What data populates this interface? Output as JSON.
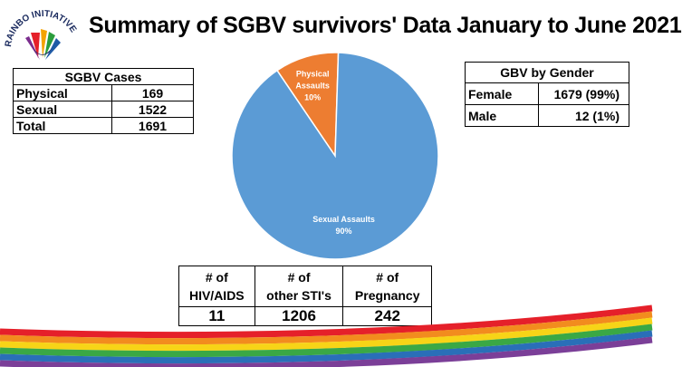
{
  "title": "Summary of SGBV survivors' Data January to June 2021",
  "logo": {
    "text": "RAINBO INITIATIVE"
  },
  "sgbv_cases": {
    "header": "SGBV Cases",
    "rows": [
      {
        "label": "Physical",
        "value": "169"
      },
      {
        "label": "Sexual",
        "value": "1522"
      },
      {
        "label": "Total",
        "value": "1691"
      }
    ]
  },
  "gbv_gender": {
    "header": "GBV by Gender",
    "rows": [
      {
        "label": "Female",
        "value": "1679 (99%)"
      },
      {
        "label": "Male",
        "value": "12 (1%)"
      }
    ]
  },
  "summary_table": {
    "headers": [
      "# of HIV/AIDS",
      "# of other STI's",
      "# of Pregnancy"
    ],
    "values": [
      "11",
      "1206",
      "242"
    ]
  },
  "chart_data": {
    "type": "pie",
    "slices": [
      {
        "label": "Sexual Assaults",
        "value": 90,
        "pct_label": "90%",
        "color": "#5b9bd5"
      },
      {
        "label": "Physical Assaults",
        "value": 10,
        "pct_label": "10%",
        "color": "#ed7d31"
      }
    ]
  }
}
